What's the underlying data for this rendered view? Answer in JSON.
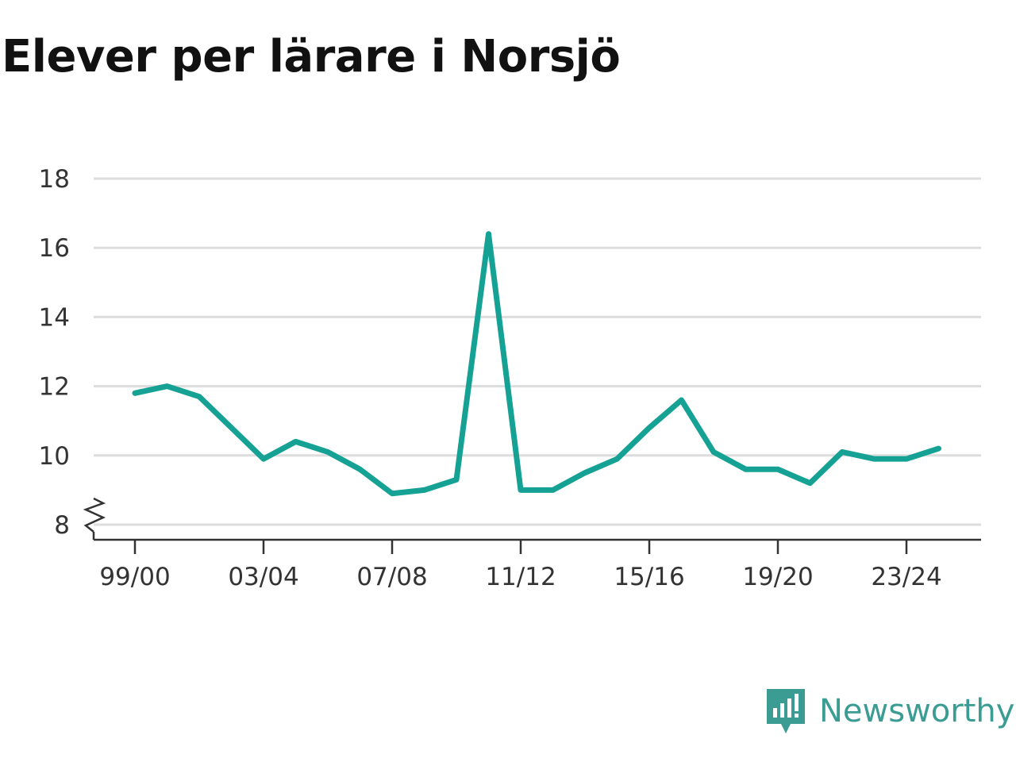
{
  "title": "Elever per lärare i Norsjö",
  "brand": {
    "name": "Newsworthy",
    "color": "#3a9c92"
  },
  "colors": {
    "line": "#15a295",
    "grid": "#dddddd",
    "axis": "#333333"
  },
  "chart_data": {
    "type": "line",
    "title": "Elever per lärare i Norsjö",
    "xlabel": "",
    "ylabel": "",
    "x": [
      "99/00",
      "00/01",
      "01/02",
      "02/03",
      "03/04",
      "04/05",
      "05/06",
      "06/07",
      "07/08",
      "08/09",
      "09/10",
      "10/11",
      "11/12",
      "12/13",
      "13/14",
      "14/15",
      "15/16",
      "16/17",
      "17/18",
      "18/19",
      "19/20",
      "20/21",
      "21/22",
      "22/23",
      "23/24",
      "24/25"
    ],
    "x_tick_labels": [
      "99/00",
      "03/04",
      "07/08",
      "11/12",
      "15/16",
      "19/20",
      "23/24"
    ],
    "y_ticks": [
      8,
      10,
      12,
      14,
      16,
      18
    ],
    "ylim": [
      8,
      18
    ],
    "axis_break": true,
    "grid": true,
    "series": [
      {
        "values": [
          11.8,
          12.0,
          11.7,
          10.8,
          9.9,
          10.4,
          10.1,
          9.6,
          8.9,
          9.0,
          9.3,
          16.4,
          9.0,
          9.0,
          9.5,
          9.9,
          10.8,
          11.6,
          10.1,
          9.6,
          9.6,
          9.2,
          10.1,
          9.9,
          9.9,
          10.2
        ]
      }
    ]
  }
}
